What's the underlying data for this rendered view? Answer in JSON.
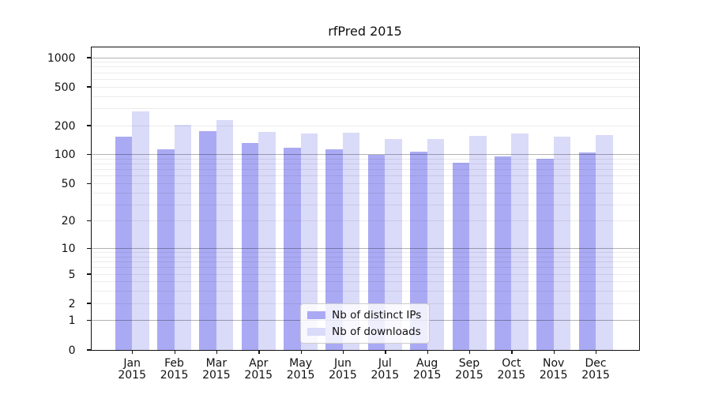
{
  "chart_data": {
    "type": "bar",
    "title": "rfPred 2015",
    "categories": [
      "Jan",
      "Feb",
      "Mar",
      "Apr",
      "May",
      "Jun",
      "Jul",
      "Aug",
      "Sep",
      "Oct",
      "Nov",
      "Dec"
    ],
    "category_year": "2015",
    "series": [
      {
        "name": "Nb of distinct IPs",
        "color": "#aaaaf4",
        "values": [
          156,
          115,
          176,
          133,
          120,
          114,
          100,
          108,
          84,
          97,
          91,
          107
        ]
      },
      {
        "name": "Nb of downloads",
        "color": "#dadaf9",
        "values": [
          281,
          207,
          230,
          174,
          167,
          171,
          147,
          148,
          158,
          166,
          156,
          161
        ]
      }
    ],
    "y_ticks": [
      0,
      1,
      2,
      5,
      10,
      20,
      50,
      100,
      200,
      500,
      1000
    ],
    "y_major_gridlines": [
      1,
      10,
      100,
      1000
    ],
    "y_minor_gridline_bases": [
      2,
      3,
      4,
      5,
      6,
      7,
      8,
      9
    ],
    "yscale": "log10(value+1)",
    "ylim": [
      0,
      1300
    ],
    "grid": "both",
    "legend_position": "lower center",
    "colors": {
      "major_grid": "rgba(0,0,0,0.30)",
      "minor_grid": "rgba(0,0,0,0.075)",
      "axis": "#111111",
      "text": "#111111",
      "background": "#ffffff"
    }
  }
}
